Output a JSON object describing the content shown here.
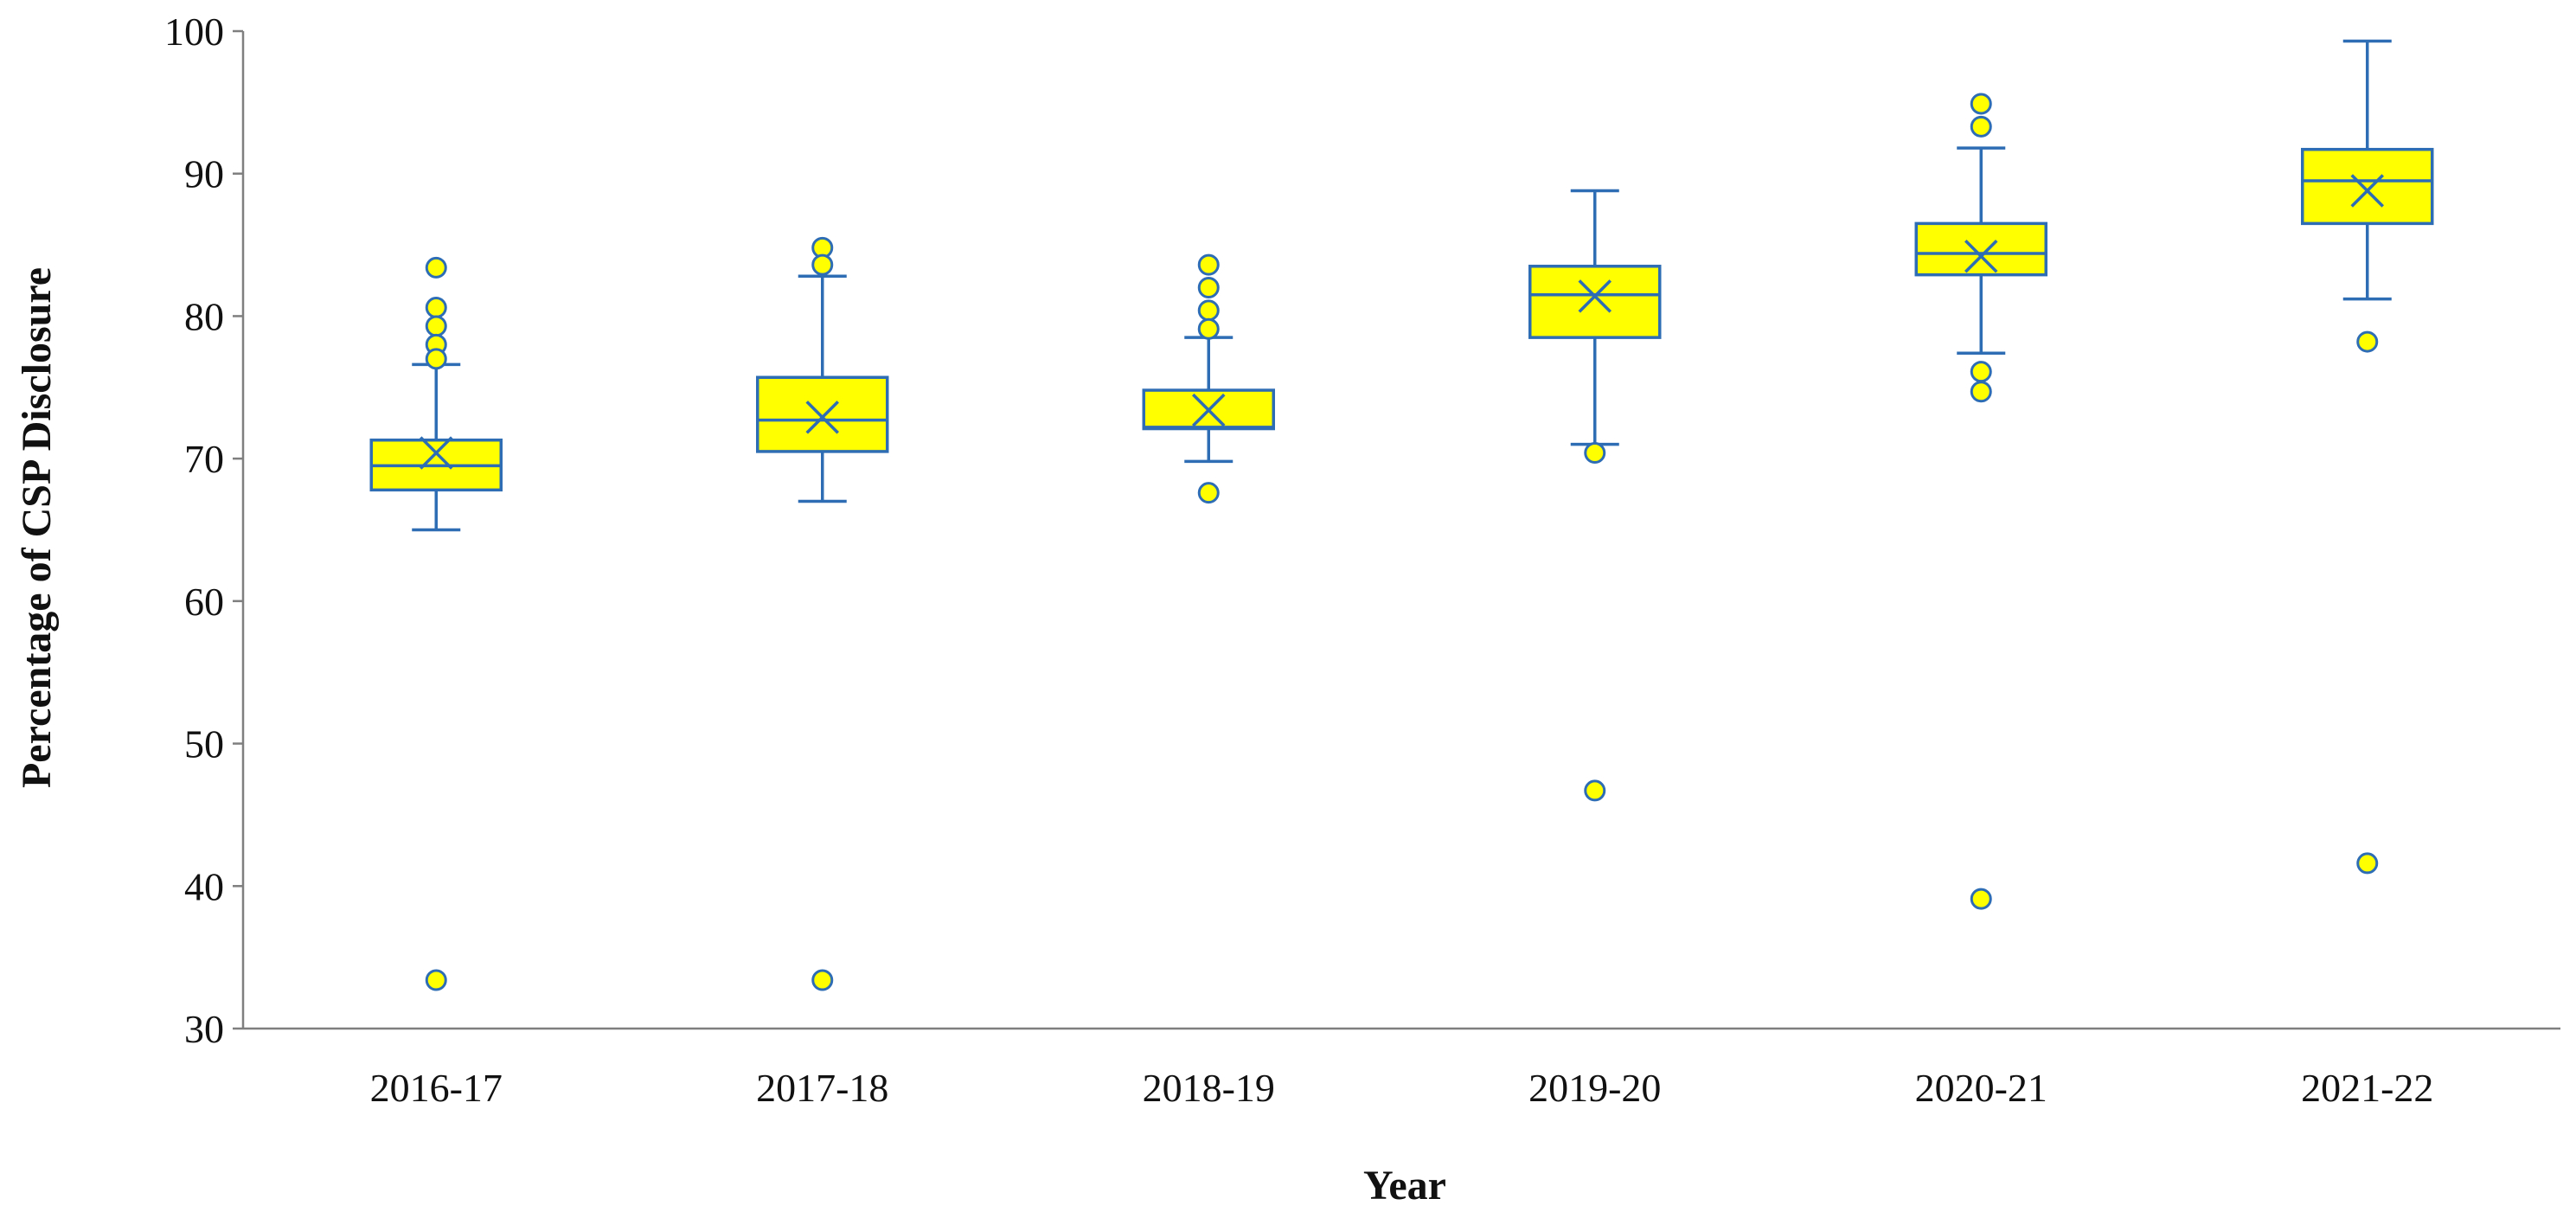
{
  "chart_data": {
    "type": "box",
    "xlabel": "Year",
    "ylabel": "Percentage of CSP Disclosure",
    "ylim": [
      30,
      100
    ],
    "yticks": [
      30,
      40,
      50,
      60,
      70,
      80,
      90,
      100
    ],
    "grid": false,
    "legend": "none",
    "colors": {
      "box_fill": "#ffff00",
      "stroke": "#2e6db4",
      "axis": "#7f7f7f"
    },
    "categories": [
      "2016-17",
      "2017-18",
      "2018-19",
      "2019-20",
      "2020-21",
      "2021-22"
    ],
    "boxes": [
      {
        "category": "2016-17",
        "whisker_low": 65.0,
        "q1": 67.8,
        "median": 69.5,
        "q3": 71.3,
        "whisker_high": 76.6,
        "mean": 70.4,
        "outliers": [
          83.4,
          80.6,
          79.3,
          78.0,
          77.0,
          33.4
        ]
      },
      {
        "category": "2017-18",
        "whisker_low": 67.0,
        "q1": 70.5,
        "median": 72.7,
        "q3": 75.7,
        "whisker_high": 82.8,
        "mean": 72.9,
        "outliers": [
          84.8,
          83.6,
          33.4
        ]
      },
      {
        "category": "2018-19",
        "whisker_low": 69.8,
        "q1": 72.1,
        "median": 72.2,
        "q3": 74.8,
        "whisker_high": 78.5,
        "mean": 73.4,
        "outliers": [
          83.6,
          82.0,
          80.4,
          79.1,
          67.6
        ]
      },
      {
        "category": "2019-20",
        "whisker_low": 71.0,
        "q1": 78.5,
        "median": 81.5,
        "q3": 83.5,
        "whisker_high": 88.8,
        "mean": 81.4,
        "outliers": [
          70.4,
          46.7
        ]
      },
      {
        "category": "2020-21",
        "whisker_low": 77.4,
        "q1": 82.9,
        "median": 84.4,
        "q3": 86.5,
        "whisker_high": 91.8,
        "mean": 84.2,
        "outliers": [
          94.9,
          93.3,
          76.1,
          74.7,
          39.1
        ]
      },
      {
        "category": "2021-22",
        "whisker_low": 81.2,
        "q1": 86.5,
        "median": 89.5,
        "q3": 91.7,
        "whisker_high": 99.3,
        "mean": 88.8,
        "outliers": [
          78.2,
          41.6
        ]
      }
    ]
  }
}
